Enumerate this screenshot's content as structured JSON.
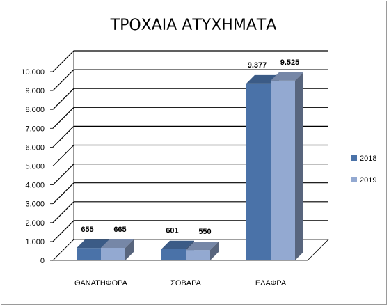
{
  "chart_data": {
    "type": "bar",
    "title": "ΤΡΟΧΑΙΑ ΑΤΥΧΗΜΑΤΑ",
    "categories": [
      "ΘΑΝΑΤΗΦΟΡΑ",
      "ΣΟΒΑΡΑ",
      "ΕΛΑΦΡΑ"
    ],
    "series": [
      {
        "name": "2018",
        "values": [
          655,
          601,
          9377
        ],
        "value_labels": [
          "655",
          "601",
          "9.377"
        ],
        "color": "#4a72a8"
      },
      {
        "name": "2019",
        "values": [
          665,
          550,
          9525
        ],
        "value_labels": [
          "665",
          "550",
          "9.525"
        ],
        "color": "#93a9d1"
      }
    ],
    "yticks": [
      "0",
      "1.000",
      "2.000",
      "3.000",
      "4.000",
      "5.000",
      "6.000",
      "7.000",
      "8.000",
      "9.000",
      "10.000"
    ],
    "ylim": [
      0,
      10000
    ],
    "grid": true,
    "legend_position": "right",
    "style": "3d-clustered-column"
  }
}
